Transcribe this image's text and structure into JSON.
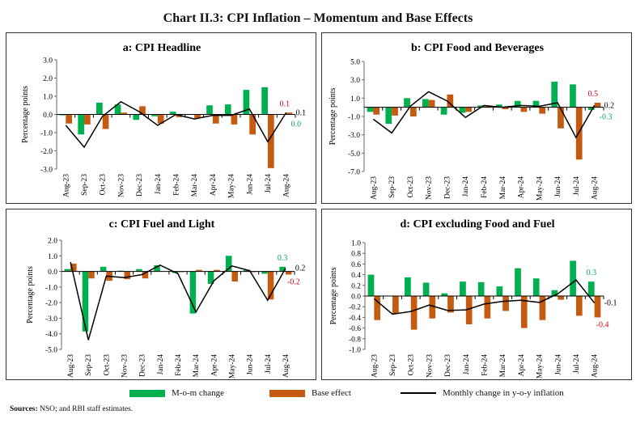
{
  "title": "Chart II.3: CPI Inflation – Momentum and Base Effects",
  "legend": {
    "mom": "M-o-m change",
    "base": "Base effect",
    "line": "Monthly change in y-o-y inflation"
  },
  "sources_label": "Sources:",
  "sources_text": "NSO; and RBI staff estimates.",
  "colors": {
    "mom": "#00b050",
    "base": "#c55a11",
    "line": "#000000",
    "base_label": "#d0021b"
  },
  "chart_data": [
    {
      "type": "bar",
      "title": "a: CPI Headline",
      "ylabel": "Percentage points",
      "ylim": [
        -3,
        3
      ],
      "yticks": [
        "3.0",
        "2.0",
        "1.0",
        "0.0",
        "-1.0",
        "-2.0",
        "-3.0"
      ],
      "grid": false,
      "categories": [
        "Aug-23",
        "Sep-23",
        "Oct-23",
        "Nov-23",
        "Dec-23",
        "Jan-24",
        "Feb-24",
        "Mar-24",
        "Apr-24",
        "May-24",
        "Jun-24",
        "Jul-24",
        "Aug-24"
      ],
      "series": [
        {
          "name": "M-o-m change",
          "values": [
            -0.05,
            -1.1,
            0.65,
            0.55,
            -0.3,
            -0.1,
            0.15,
            0.0,
            0.5,
            0.55,
            1.35,
            1.5,
            0.0
          ]
        },
        {
          "name": "Base effect",
          "values": [
            -0.5,
            -0.55,
            -0.8,
            0.1,
            0.45,
            -0.5,
            -0.15,
            -0.2,
            -0.5,
            -0.55,
            -1.1,
            -2.95,
            0.1
          ]
        },
        {
          "name": "Monthly change in y-o-y inflation",
          "values": [
            -0.6,
            -1.8,
            -0.1,
            0.7,
            0.15,
            -0.6,
            0.0,
            -0.25,
            -0.05,
            -0.05,
            0.3,
            -1.5,
            0.1
          ]
        }
      ],
      "labels": {
        "mom": "0.0",
        "base": "0.1",
        "line": "0.1"
      }
    },
    {
      "type": "bar",
      "title": "b: CPI Food and Beverages",
      "ylabel": "Percentage points",
      "ylim": [
        -7,
        5
      ],
      "yticks": [
        "5.0",
        "3.0",
        "1.0",
        "-1.0",
        "-3.0",
        "-5.0",
        "-7.0"
      ],
      "grid": false,
      "categories": [
        "Aug-23",
        "Sep-23",
        "Oct-23",
        "Nov-23",
        "Dec-23",
        "Jan-24",
        "Feb-24",
        "Mar-24",
        "Apr-24",
        "May-24",
        "Jun-24",
        "Jul-24",
        "Aug-24"
      ],
      "series": [
        {
          "name": "M-o-m change",
          "values": [
            -0.5,
            -1.8,
            1.0,
            0.9,
            -0.8,
            -0.6,
            0.2,
            0.3,
            0.7,
            0.7,
            2.8,
            2.5,
            -0.3
          ]
        },
        {
          "name": "Base effect",
          "values": [
            -0.8,
            -0.9,
            -1.0,
            0.8,
            1.4,
            -0.5,
            0.1,
            -0.2,
            -0.5,
            -0.7,
            -2.3,
            -5.7,
            0.5
          ]
        },
        {
          "name": "Monthly change in y-o-y inflation",
          "values": [
            -1.3,
            -2.8,
            0.1,
            1.7,
            0.7,
            -1.1,
            0.2,
            0.0,
            0.2,
            0.1,
            0.5,
            -3.3,
            0.2
          ]
        }
      ],
      "labels": {
        "mom": "-0.3",
        "base": "0.5",
        "line": "0.2"
      }
    },
    {
      "type": "bar",
      "title": "c: CPI Fuel and Light",
      "ylabel": "Percentage points",
      "ylim": [
        -5,
        2
      ],
      "yticks": [
        "2.0",
        "1.0",
        "0.0",
        "-1.0",
        "-2.0",
        "-3.0",
        "-4.0",
        "-5.0"
      ],
      "grid": false,
      "categories": [
        "Aug-23",
        "Sep-23",
        "Oct-23",
        "Nov-23",
        "Dec-23",
        "Jan-24",
        "Feb-24",
        "Mar-24",
        "Apr-24",
        "May-24",
        "Jun-24",
        "Jul-24",
        "Aug-24"
      ],
      "series": [
        {
          "name": "M-o-m change",
          "values": [
            0.15,
            -3.85,
            0.3,
            0.05,
            0.15,
            0.4,
            -0.1,
            -2.7,
            -0.8,
            1.0,
            0.1,
            -0.15,
            0.3
          ]
        },
        {
          "name": "Base effect",
          "values": [
            0.5,
            -0.45,
            -0.6,
            -0.5,
            -0.45,
            0.0,
            -0.05,
            0.1,
            0.1,
            -0.65,
            -0.05,
            -1.8,
            -0.2
          ]
        },
        {
          "name": "Monthly change in y-o-y inflation",
          "values": [
            0.6,
            -4.4,
            -0.3,
            -0.4,
            -0.2,
            0.4,
            -0.15,
            -2.6,
            -0.6,
            0.35,
            0.05,
            -1.85,
            0.2
          ]
        }
      ],
      "labels": {
        "mom": "0.3",
        "base": "-0.2",
        "line": "0.2"
      }
    },
    {
      "type": "bar",
      "title": "d: CPI excluding Food and Fuel",
      "ylabel": "Percentage points",
      "ylim": [
        -1,
        1
      ],
      "yticks": [
        "1.0",
        "0.8",
        "0.6",
        "0.4",
        "0.2",
        "0.0",
        "-0.2",
        "-0.4",
        "-0.6",
        "-0.8",
        "-1.0"
      ],
      "grid": false,
      "categories": [
        "Aug-23",
        "Sep-23",
        "Oct-23",
        "Nov-23",
        "Dec-23",
        "Jan-24",
        "Feb-24",
        "Mar-24",
        "Apr-24",
        "May-24",
        "Jun-24",
        "Jul-24",
        "Aug-24"
      ],
      "series": [
        {
          "name": "M-o-m change",
          "values": [
            0.4,
            0.0,
            0.35,
            0.25,
            0.05,
            0.27,
            0.26,
            0.18,
            0.52,
            0.33,
            0.11,
            0.66,
            0.27
          ]
        },
        {
          "name": "Base effect",
          "values": [
            -0.45,
            -0.33,
            -0.63,
            -0.42,
            -0.31,
            -0.53,
            -0.42,
            -0.28,
            -0.6,
            -0.45,
            -0.07,
            -0.37,
            -0.4
          ]
        },
        {
          "name": "Monthly change in y-o-y inflation",
          "values": [
            -0.05,
            -0.34,
            -0.29,
            -0.17,
            -0.27,
            -0.26,
            -0.15,
            -0.1,
            -0.08,
            -0.12,
            0.04,
            0.3,
            -0.13
          ]
        }
      ],
      "labels": {
        "mom": "0.3",
        "base": "-0.4",
        "line": "-0.1"
      }
    }
  ]
}
